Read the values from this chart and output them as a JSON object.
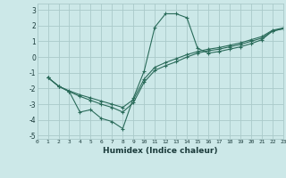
{
  "xlabel": "Humidex (Indice chaleur)",
  "background_color": "#cce8e8",
  "grid_color": "#aacaca",
  "line_color": "#2a6b5a",
  "xlim": [
    0,
    23
  ],
  "ylim": [
    -5.2,
    3.4
  ],
  "yticks": [
    -5,
    -4,
    -3,
    -2,
    -1,
    0,
    1,
    2,
    3
  ],
  "xticks": [
    0,
    1,
    2,
    3,
    4,
    5,
    6,
    7,
    8,
    9,
    10,
    11,
    12,
    13,
    14,
    15,
    16,
    17,
    18,
    19,
    20,
    21,
    22,
    23
  ],
  "curve1_x": [
    1,
    2,
    3,
    4,
    5,
    6,
    7,
    8,
    9,
    10,
    11,
    12,
    13,
    14,
    15,
    16,
    17,
    18,
    19,
    20,
    21,
    22,
    23
  ],
  "curve1_y": [
    -1.3,
    -1.85,
    -2.2,
    -3.5,
    -3.35,
    -3.9,
    -4.1,
    -4.55,
    -2.6,
    -0.9,
    1.9,
    2.75,
    2.75,
    2.5,
    0.55,
    0.25,
    0.35,
    0.5,
    0.65,
    0.85,
    1.1,
    1.65,
    1.8
  ],
  "curve2_x": [
    1,
    2,
    3,
    4,
    5,
    6,
    7,
    8,
    9,
    10,
    11,
    12,
    13,
    14,
    15,
    16,
    17,
    18,
    19,
    20,
    21,
    22,
    23
  ],
  "curve2_y": [
    -1.3,
    -1.85,
    -2.2,
    -2.5,
    -2.75,
    -3.0,
    -3.2,
    -3.5,
    -2.9,
    -1.6,
    -0.85,
    -0.55,
    -0.3,
    0.0,
    0.25,
    0.4,
    0.5,
    0.65,
    0.8,
    1.0,
    1.2,
    1.65,
    1.8
  ],
  "curve3_x": [
    1,
    2,
    3,
    4,
    5,
    6,
    7,
    8,
    9,
    10,
    11,
    12,
    13,
    14,
    15,
    16,
    17,
    18,
    19,
    20,
    21,
    22,
    23
  ],
  "curve3_y": [
    -1.3,
    -1.85,
    -2.15,
    -2.4,
    -2.6,
    -2.8,
    -3.0,
    -3.2,
    -2.7,
    -1.4,
    -0.65,
    -0.35,
    -0.1,
    0.15,
    0.35,
    0.5,
    0.6,
    0.75,
    0.9,
    1.1,
    1.3,
    1.7,
    1.85
  ]
}
